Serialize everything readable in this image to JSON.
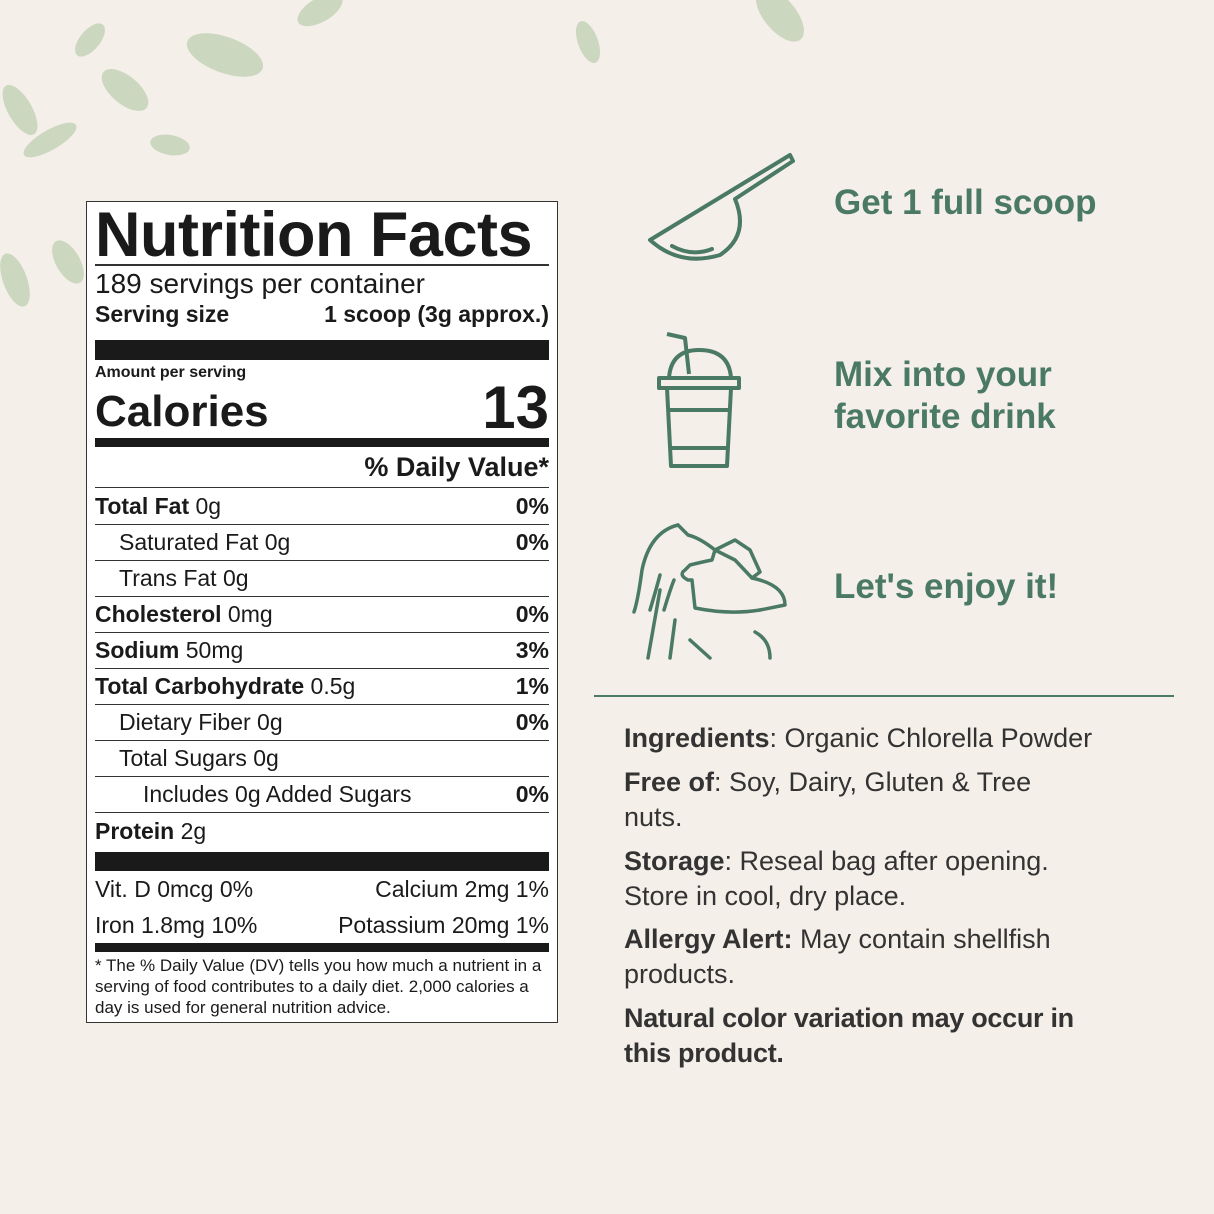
{
  "colors": {
    "background": "#f5efe9",
    "accent": "#4a7a63",
    "text": "#1a1a1a"
  },
  "label": {
    "title": "Nutrition Facts",
    "servings": "189 servings per container",
    "serving_size_label": "Serving size",
    "serving_size_value": "1 scoop (3g approx.)",
    "amount_per_serving": "Amount per serving",
    "calories_label": "Calories",
    "calories_value": "13",
    "dv_header": "% Daily Value*",
    "rows": [
      {
        "name": "Total Fat",
        "amount": " 0g",
        "dv": "0%",
        "bold": true,
        "indent": 0
      },
      {
        "name": "Saturated Fat 0g",
        "amount": "",
        "dv": "0%",
        "bold": false,
        "indent": 1
      },
      {
        "name": "Trans Fat 0g",
        "amount": "",
        "dv": "",
        "bold": false,
        "indent": 1
      },
      {
        "name": "Cholesterol",
        "amount": " 0mg",
        "dv": "0%",
        "bold": true,
        "indent": 0
      },
      {
        "name": "Sodium",
        "amount": " 50mg",
        "dv": "3%",
        "bold": true,
        "indent": 0
      },
      {
        "name": "Total Carbohydrate",
        "amount": " 0.5g",
        "dv": "1%",
        "bold": true,
        "indent": 0
      },
      {
        "name": "Dietary Fiber 0g",
        "amount": "",
        "dv": "0%",
        "bold": false,
        "indent": 1
      },
      {
        "name": "Total Sugars 0g",
        "amount": "",
        "dv": "",
        "bold": false,
        "indent": 1
      },
      {
        "name": "Includes 0g Added Sugars",
        "amount": "",
        "dv": "0%",
        "bold": false,
        "indent": 2
      },
      {
        "name": "Protein",
        "amount": " 2g",
        "dv": "",
        "bold": true,
        "indent": 0
      }
    ],
    "vitamins": [
      {
        "left": "Vit. D 0mcg 0%",
        "right": "Calcium 2mg 1%"
      },
      {
        "left": "Iron 1.8mg 10%",
        "right": "Potassium 20mg 1%"
      }
    ],
    "footnote": "* The % Daily Value (DV) tells you how much a nutrient in a serving of food contributes to a daily diet. 2,000 calories a day is used for general nutrition advice."
  },
  "steps": [
    {
      "icon": "scoop-icon",
      "text": "Get 1 full scoop"
    },
    {
      "icon": "drink-cup-icon",
      "text": "Mix into your favorite drink"
    },
    {
      "icon": "woman-drinking-icon",
      "text": "Let's enjoy it!"
    }
  ],
  "info": [
    {
      "label": "Ingredients",
      "text": ": Organic Chlorella Powder"
    },
    {
      "label": "Free of",
      "text": ": Soy, Dairy, Gluten & Tree nuts."
    },
    {
      "label": "Storage",
      "text": ": Reseal bag after opening. Store in cool, dry place."
    },
    {
      "label": "Allergy Alert:",
      "text": " May contain shellfish products."
    }
  ],
  "note": "Natural color variation may occur in this product."
}
